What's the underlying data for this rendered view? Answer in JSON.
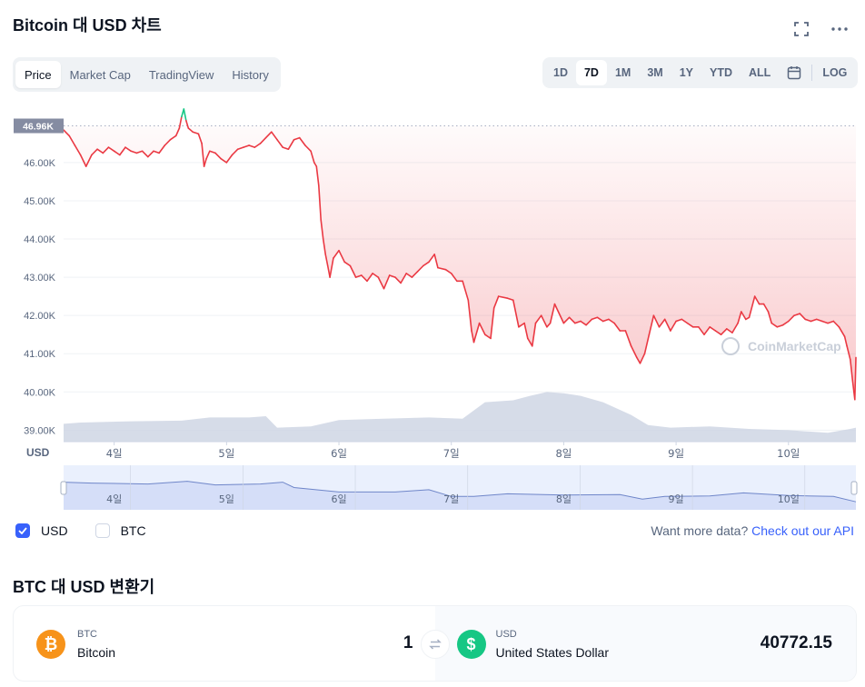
{
  "header": {
    "title": "Bitcoin 대 USD 차트"
  },
  "tabs": [
    {
      "label": "Price",
      "active": true
    },
    {
      "label": "Market Cap",
      "active": false
    },
    {
      "label": "TradingView",
      "active": false
    },
    {
      "label": "History",
      "active": false
    }
  ],
  "ranges": [
    {
      "label": "1D",
      "active": false
    },
    {
      "label": "7D",
      "active": true
    },
    {
      "label": "1M",
      "active": false
    },
    {
      "label": "3M",
      "active": false
    },
    {
      "label": "1Y",
      "active": false
    },
    {
      "label": "YTD",
      "active": false
    },
    {
      "label": "ALL",
      "active": false
    }
  ],
  "log_label": "LOG",
  "chart_data": {
    "type": "line",
    "currency_label": "USD",
    "watermark": "CoinMarketCap",
    "current_price_label": "46.96K",
    "ylim": [
      38700,
      47400
    ],
    "y_ticks": [
      {
        "value": 46000,
        "label": "46.00K"
      },
      {
        "value": 45000,
        "label": "45.00K"
      },
      {
        "value": 44000,
        "label": "44.00K"
      },
      {
        "value": 43000,
        "label": "43.00K"
      },
      {
        "value": 42000,
        "label": "42.00K"
      },
      {
        "value": 41000,
        "label": "41.00K"
      },
      {
        "value": 40000,
        "label": "40.00K"
      },
      {
        "value": 39000,
        "label": "39.00K"
      }
    ],
    "xlim": [
      3.55,
      10.6
    ],
    "x_ticks": [
      {
        "value": 4,
        "label": "4일"
      },
      {
        "value": 5,
        "label": "5일"
      },
      {
        "value": 6,
        "label": "6일"
      },
      {
        "value": 7,
        "label": "7일"
      },
      {
        "value": 8,
        "label": "8일"
      },
      {
        "value": 9,
        "label": "9일"
      },
      {
        "value": 10,
        "label": "10일"
      }
    ],
    "reference_price": 46960,
    "colors": {
      "up": "#16c784",
      "down": "#ea3943",
      "volume": "#cfd6e4"
    },
    "series": [
      {
        "points": [
          [
            3.55,
            46850
          ],
          [
            3.6,
            46700
          ],
          [
            3.65,
            46450
          ],
          [
            3.7,
            46200
          ],
          [
            3.75,
            45900
          ],
          [
            3.8,
            46200
          ],
          [
            3.85,
            46350
          ],
          [
            3.9,
            46250
          ],
          [
            3.95,
            46400
          ],
          [
            4.0,
            46300
          ],
          [
            4.05,
            46200
          ],
          [
            4.1,
            46400
          ],
          [
            4.15,
            46300
          ],
          [
            4.2,
            46250
          ],
          [
            4.25,
            46300
          ],
          [
            4.3,
            46150
          ],
          [
            4.35,
            46300
          ],
          [
            4.4,
            46250
          ],
          [
            4.45,
            46450
          ],
          [
            4.5,
            46600
          ],
          [
            4.55,
            46700
          ],
          [
            4.58,
            46900
          ],
          [
            4.6,
            47200
          ],
          [
            4.62,
            47400
          ],
          [
            4.64,
            47100
          ],
          [
            4.66,
            46900
          ],
          [
            4.7,
            46800
          ],
          [
            4.75,
            46750
          ],
          [
            4.78,
            46500
          ],
          [
            4.8,
            45900
          ],
          [
            4.82,
            46100
          ],
          [
            4.85,
            46300
          ],
          [
            4.9,
            46250
          ],
          [
            4.95,
            46100
          ],
          [
            5.0,
            46000
          ],
          [
            5.05,
            46200
          ],
          [
            5.1,
            46350
          ],
          [
            5.15,
            46400
          ],
          [
            5.2,
            46450
          ],
          [
            5.25,
            46400
          ],
          [
            5.3,
            46500
          ],
          [
            5.35,
            46650
          ],
          [
            5.4,
            46800
          ],
          [
            5.45,
            46600
          ],
          [
            5.5,
            46400
          ],
          [
            5.55,
            46350
          ],
          [
            5.6,
            46600
          ],
          [
            5.65,
            46650
          ],
          [
            5.7,
            46450
          ],
          [
            5.75,
            46300
          ],
          [
            5.78,
            46000
          ],
          [
            5.8,
            45900
          ],
          [
            5.82,
            45400
          ],
          [
            5.84,
            44500
          ],
          [
            5.86,
            44000
          ],
          [
            5.88,
            43600
          ],
          [
            5.9,
            43300
          ],
          [
            5.92,
            43000
          ],
          [
            5.95,
            43500
          ],
          [
            6.0,
            43700
          ],
          [
            6.05,
            43400
          ],
          [
            6.1,
            43300
          ],
          [
            6.15,
            43000
          ],
          [
            6.2,
            43050
          ],
          [
            6.25,
            42900
          ],
          [
            6.3,
            43100
          ],
          [
            6.35,
            43000
          ],
          [
            6.4,
            42700
          ],
          [
            6.45,
            43050
          ],
          [
            6.5,
            43000
          ],
          [
            6.55,
            42850
          ],
          [
            6.6,
            43100
          ],
          [
            6.65,
            43000
          ],
          [
            6.7,
            43150
          ],
          [
            6.75,
            43300
          ],
          [
            6.8,
            43400
          ],
          [
            6.85,
            43600
          ],
          [
            6.88,
            43250
          ],
          [
            6.95,
            43200
          ],
          [
            7.0,
            43100
          ],
          [
            7.05,
            42900
          ],
          [
            7.1,
            42900
          ],
          [
            7.15,
            42400
          ],
          [
            7.18,
            41600
          ],
          [
            7.2,
            41300
          ],
          [
            7.25,
            41800
          ],
          [
            7.3,
            41500
          ],
          [
            7.35,
            41400
          ],
          [
            7.38,
            42200
          ],
          [
            7.42,
            42500
          ],
          [
            7.5,
            42450
          ],
          [
            7.55,
            42400
          ],
          [
            7.6,
            41700
          ],
          [
            7.65,
            41800
          ],
          [
            7.68,
            41400
          ],
          [
            7.72,
            41200
          ],
          [
            7.75,
            41800
          ],
          [
            7.8,
            42000
          ],
          [
            7.85,
            41700
          ],
          [
            7.88,
            41800
          ],
          [
            7.92,
            42300
          ],
          [
            8.0,
            41800
          ],
          [
            8.05,
            41950
          ],
          [
            8.1,
            41800
          ],
          [
            8.15,
            41850
          ],
          [
            8.2,
            41750
          ],
          [
            8.25,
            41900
          ],
          [
            8.3,
            41950
          ],
          [
            8.35,
            41850
          ],
          [
            8.4,
            41900
          ],
          [
            8.45,
            41800
          ],
          [
            8.5,
            41600
          ],
          [
            8.55,
            41600
          ],
          [
            8.6,
            41200
          ],
          [
            8.65,
            40900
          ],
          [
            8.68,
            40750
          ],
          [
            8.72,
            41000
          ],
          [
            8.76,
            41500
          ],
          [
            8.8,
            42000
          ],
          [
            8.85,
            41700
          ],
          [
            8.9,
            41900
          ],
          [
            8.95,
            41600
          ],
          [
            9.0,
            41850
          ],
          [
            9.05,
            41900
          ],
          [
            9.1,
            41800
          ],
          [
            9.15,
            41700
          ],
          [
            9.2,
            41700
          ],
          [
            9.25,
            41500
          ],
          [
            9.3,
            41700
          ],
          [
            9.35,
            41600
          ],
          [
            9.4,
            41500
          ],
          [
            9.45,
            41650
          ],
          [
            9.5,
            41550
          ],
          [
            9.55,
            41800
          ],
          [
            9.58,
            42100
          ],
          [
            9.62,
            41900
          ],
          [
            9.65,
            41950
          ],
          [
            9.7,
            42500
          ],
          [
            9.74,
            42300
          ],
          [
            9.78,
            42300
          ],
          [
            9.82,
            42100
          ],
          [
            9.85,
            41800
          ],
          [
            9.9,
            41700
          ],
          [
            9.95,
            41750
          ],
          [
            10.0,
            41850
          ],
          [
            10.05,
            42000
          ],
          [
            10.1,
            42050
          ],
          [
            10.15,
            41900
          ],
          [
            10.2,
            41850
          ],
          [
            10.25,
            41900
          ],
          [
            10.3,
            41850
          ],
          [
            10.35,
            41800
          ],
          [
            10.4,
            41850
          ],
          [
            10.45,
            41700
          ],
          [
            10.5,
            41450
          ],
          [
            10.52,
            41200
          ],
          [
            10.55,
            40850
          ],
          [
            10.57,
            40300
          ],
          [
            10.59,
            39800
          ],
          [
            10.6,
            40900
          ]
        ]
      }
    ],
    "volume": [
      [
        3.55,
        0.28
      ],
      [
        3.7,
        0.3
      ],
      [
        4.15,
        0.32
      ],
      [
        4.6,
        0.33
      ],
      [
        4.85,
        0.38
      ],
      [
        5.2,
        0.38
      ],
      [
        5.35,
        0.4
      ],
      [
        5.45,
        0.22
      ],
      [
        5.75,
        0.24
      ],
      [
        6.0,
        0.34
      ],
      [
        6.4,
        0.36
      ],
      [
        6.8,
        0.38
      ],
      [
        7.1,
        0.36
      ],
      [
        7.3,
        0.62
      ],
      [
        7.55,
        0.65
      ],
      [
        7.7,
        0.72
      ],
      [
        7.85,
        0.78
      ],
      [
        8.0,
        0.76
      ],
      [
        8.15,
        0.72
      ],
      [
        8.35,
        0.62
      ],
      [
        8.6,
        0.42
      ],
      [
        8.75,
        0.26
      ],
      [
        8.95,
        0.22
      ],
      [
        9.3,
        0.24
      ],
      [
        9.65,
        0.2
      ],
      [
        10.0,
        0.18
      ],
      [
        10.35,
        0.14
      ],
      [
        10.55,
        0.2
      ],
      [
        10.6,
        0.22
      ]
    ],
    "navigator": [
      [
        3.55,
        0.62
      ],
      [
        3.8,
        0.6
      ],
      [
        4.3,
        0.58
      ],
      [
        4.65,
        0.64
      ],
      [
        4.9,
        0.56
      ],
      [
        5.3,
        0.58
      ],
      [
        5.5,
        0.62
      ],
      [
        5.6,
        0.5
      ],
      [
        6.0,
        0.4
      ],
      [
        6.5,
        0.4
      ],
      [
        6.8,
        0.45
      ],
      [
        7.0,
        0.3
      ],
      [
        7.2,
        0.3
      ],
      [
        7.5,
        0.36
      ],
      [
        8.0,
        0.33
      ],
      [
        8.5,
        0.34
      ],
      [
        8.7,
        0.24
      ],
      [
        8.9,
        0.3
      ],
      [
        9.3,
        0.31
      ],
      [
        9.6,
        0.38
      ],
      [
        10.0,
        0.32
      ],
      [
        10.4,
        0.3
      ],
      [
        10.6,
        0.18
      ]
    ]
  },
  "currency_toggle": {
    "usd_label": "USD",
    "btc_label": "BTC"
  },
  "api_prompt": {
    "text": "Want more data?",
    "link": "Check out our API"
  },
  "converter": {
    "title": "BTC 대 USD 변환기",
    "from": {
      "symbol": "BTC",
      "name": "Bitcoin",
      "amount": "1",
      "color": "#f7931a"
    },
    "to": {
      "symbol": "USD",
      "name": "United States Dollar",
      "amount": "40772.15",
      "color": "#16c784"
    }
  }
}
